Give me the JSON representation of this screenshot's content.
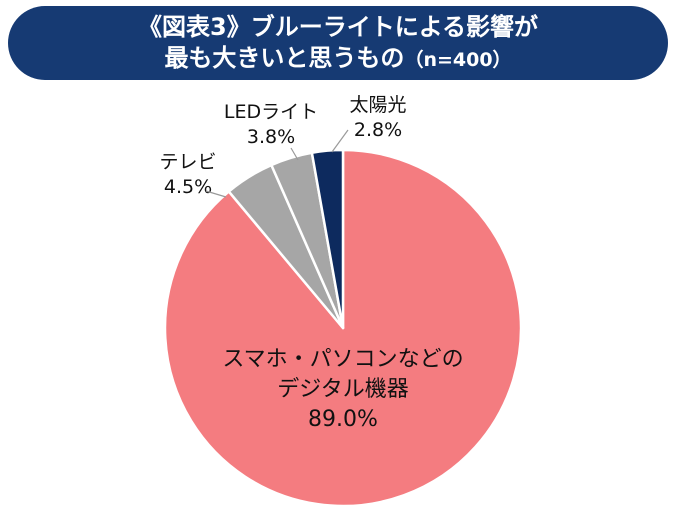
{
  "title": {
    "line1": "《図表3》ブルーライトによる影響が",
    "line2": "最も大きいと思うもの",
    "note": "（n=400）"
  },
  "chart_data": {
    "type": "pie",
    "title": "《図表3》ブルーライトによる影響が最も大きいと思うもの（n=400）",
    "start": "12 o'clock, clockwise",
    "slices": [
      {
        "label_lines": [
          "スマホ・パソコンなどの",
          "デジタル機器"
        ],
        "value": 89.0,
        "value_label": "89.0%",
        "color": "#f47c80",
        "label_placement": "inside"
      },
      {
        "label_lines": [
          "テレビ"
        ],
        "value": 4.5,
        "value_label": "4.5%",
        "color": "#a6a6a6",
        "label_placement": "outside"
      },
      {
        "label_lines": [
          "LEDライト"
        ],
        "value": 3.8,
        "value_label": "3.8%",
        "color": "#a6a6a6",
        "label_placement": "outside"
      },
      {
        "label_lines": [
          "太陽光"
        ],
        "value": 2.8,
        "value_label": "2.8%",
        "color": "#0d2a5e",
        "label_placement": "outside"
      }
    ]
  }
}
